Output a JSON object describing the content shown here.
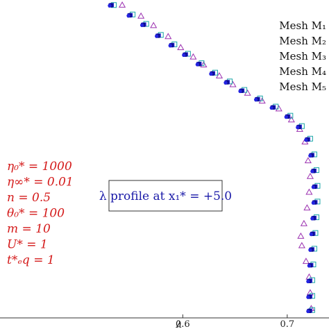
{
  "chart_data": {
    "type": "scatter",
    "xlabel": "λ",
    "x_ticks": [
      {
        "value": 0.6,
        "label": "0.6"
      },
      {
        "value": 0.7,
        "label": "0.7"
      }
    ],
    "xlim": [
      0.425,
      0.74
    ],
    "ylim": [
      0,
      1
    ],
    "annotation": "λ profile at x₁* = +5.0",
    "parameters": [
      "η₀* = 1000",
      "η∞* = 0.01",
      "n = 0.5",
      "θ₀* = 100",
      "m = 10",
      "U* = 1",
      "t*ₑq = 1"
    ],
    "legend_location": "top-right",
    "series": [
      {
        "name": "Mesh M₁",
        "marker": "triangle-open",
        "color": "#9b30b0",
        "points": [
          [
            0.542,
            0.995
          ],
          [
            0.56,
            0.96
          ],
          [
            0.572,
            0.93
          ],
          [
            0.586,
            0.895
          ],
          [
            0.598,
            0.86
          ],
          [
            0.61,
            0.83
          ],
          [
            0.62,
            0.805
          ],
          [
            0.635,
            0.77
          ],
          [
            0.648,
            0.742
          ],
          [
            0.662,
            0.715
          ],
          [
            0.676,
            0.69
          ],
          [
            0.692,
            0.665
          ],
          [
            0.704,
            0.63
          ],
          [
            0.712,
            0.6
          ],
          [
            0.717,
            0.56
          ],
          [
            0.72,
            0.5
          ],
          [
            0.722,
            0.45
          ],
          [
            0.721,
            0.4
          ],
          [
            0.719,
            0.35
          ],
          [
            0.716,
            0.3
          ],
          [
            0.713,
            0.26
          ],
          [
            0.714,
            0.23
          ],
          [
            0.718,
            0.18
          ],
          [
            0.721,
            0.13
          ],
          [
            0.722,
            0.08
          ],
          [
            0.723,
            0.03
          ]
        ]
      },
      {
        "name": "Mesh M₂",
        "marker": "square-open",
        "color": "#17a5a5",
        "points": [
          [
            0.534,
            0.995
          ],
          [
            0.552,
            0.965
          ],
          [
            0.565,
            0.935
          ],
          [
            0.579,
            0.9
          ],
          [
            0.592,
            0.87
          ],
          [
            0.605,
            0.84
          ],
          [
            0.618,
            0.81
          ],
          [
            0.631,
            0.78
          ],
          [
            0.645,
            0.752
          ],
          [
            0.659,
            0.725
          ],
          [
            0.674,
            0.698
          ],
          [
            0.689,
            0.672
          ],
          [
            0.703,
            0.643
          ],
          [
            0.714,
            0.61
          ],
          [
            0.722,
            0.57
          ],
          [
            0.726,
            0.52
          ],
          [
            0.728,
            0.47
          ],
          [
            0.729,
            0.42
          ],
          [
            0.729,
            0.37
          ],
          [
            0.728,
            0.32
          ],
          [
            0.727,
            0.27
          ],
          [
            0.726,
            0.22
          ],
          [
            0.725,
            0.17
          ],
          [
            0.724,
            0.12
          ],
          [
            0.724,
            0.07
          ],
          [
            0.724,
            0.025
          ]
        ]
      },
      {
        "name": "Mesh M₃",
        "marker": "square-filled",
        "color": "#1c1ccc",
        "points": [
          [
            0.532,
            0.995
          ],
          [
            0.55,
            0.963
          ],
          [
            0.563,
            0.933
          ],
          [
            0.577,
            0.898
          ],
          [
            0.59,
            0.868
          ],
          [
            0.603,
            0.838
          ],
          [
            0.616,
            0.808
          ],
          [
            0.629,
            0.778
          ],
          [
            0.643,
            0.75
          ],
          [
            0.657,
            0.723
          ],
          [
            0.672,
            0.696
          ],
          [
            0.687,
            0.67
          ],
          [
            0.701,
            0.641
          ],
          [
            0.712,
            0.608
          ],
          [
            0.72,
            0.568
          ],
          [
            0.724,
            0.518
          ],
          [
            0.726,
            0.468
          ],
          [
            0.727,
            0.418
          ],
          [
            0.727,
            0.368
          ],
          [
            0.726,
            0.318
          ],
          [
            0.725,
            0.268
          ],
          [
            0.724,
            0.218
          ],
          [
            0.723,
            0.168
          ],
          [
            0.722,
            0.118
          ],
          [
            0.722,
            0.068
          ],
          [
            0.722,
            0.023
          ]
        ]
      },
      {
        "name": "Mesh M₄",
        "marker": "square-filled",
        "color": "#0c0c8a",
        "points": [
          [
            0.531,
            0.994
          ],
          [
            0.549,
            0.962
          ],
          [
            0.562,
            0.932
          ],
          [
            0.576,
            0.897
          ],
          [
            0.589,
            0.867
          ],
          [
            0.602,
            0.837
          ],
          [
            0.615,
            0.807
          ],
          [
            0.628,
            0.777
          ],
          [
            0.642,
            0.749
          ],
          [
            0.656,
            0.722
          ],
          [
            0.671,
            0.695
          ],
          [
            0.686,
            0.669
          ],
          [
            0.7,
            0.64
          ],
          [
            0.711,
            0.607
          ],
          [
            0.719,
            0.567
          ],
          [
            0.723,
            0.517
          ],
          [
            0.725,
            0.467
          ],
          [
            0.726,
            0.417
          ],
          [
            0.726,
            0.367
          ],
          [
            0.725,
            0.317
          ],
          [
            0.724,
            0.267
          ],
          [
            0.723,
            0.217
          ],
          [
            0.722,
            0.167
          ],
          [
            0.721,
            0.117
          ],
          [
            0.721,
            0.067
          ],
          [
            0.721,
            0.022
          ]
        ]
      },
      {
        "name": "Mesh M₅",
        "marker": "circle-filled",
        "color": "#2323e0",
        "points": [
          [
            0.53,
            0.993
          ],
          [
            0.548,
            0.961
          ],
          [
            0.561,
            0.931
          ],
          [
            0.575,
            0.896
          ],
          [
            0.588,
            0.866
          ],
          [
            0.601,
            0.836
          ],
          [
            0.614,
            0.806
          ],
          [
            0.627,
            0.776
          ],
          [
            0.641,
            0.748
          ],
          [
            0.655,
            0.721
          ],
          [
            0.67,
            0.694
          ],
          [
            0.685,
            0.668
          ],
          [
            0.699,
            0.639
          ],
          [
            0.71,
            0.606
          ],
          [
            0.718,
            0.566
          ],
          [
            0.722,
            0.516
          ],
          [
            0.724,
            0.466
          ],
          [
            0.725,
            0.416
          ],
          [
            0.725,
            0.366
          ],
          [
            0.724,
            0.316
          ],
          [
            0.723,
            0.266
          ],
          [
            0.722,
            0.216
          ],
          [
            0.721,
            0.166
          ],
          [
            0.72,
            0.116
          ],
          [
            0.72,
            0.066
          ],
          [
            0.72,
            0.021
          ]
        ]
      }
    ]
  }
}
